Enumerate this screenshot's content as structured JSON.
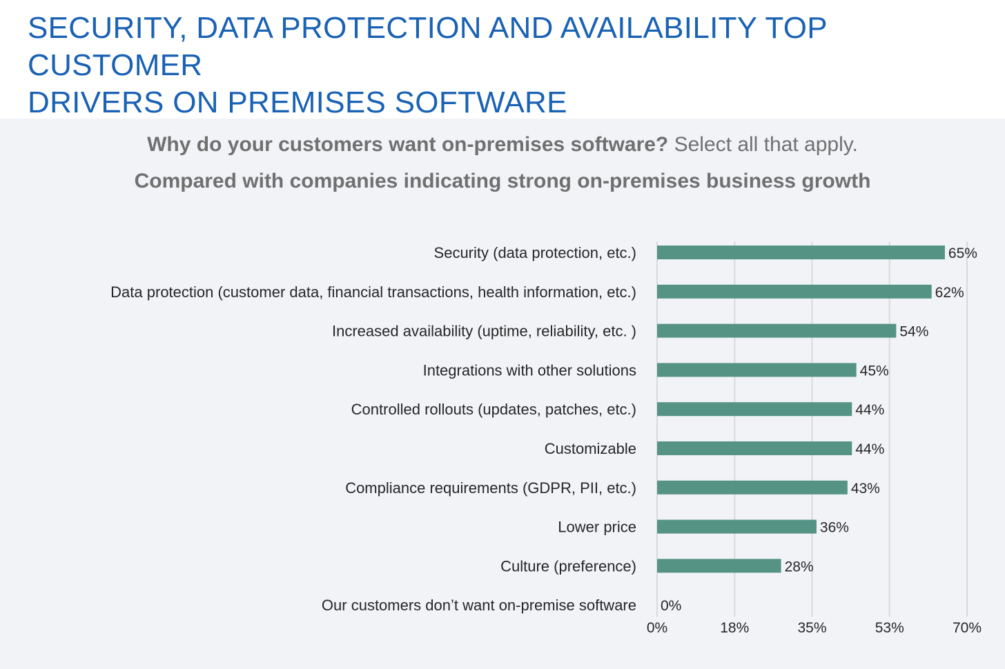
{
  "header": {
    "title_line1": "SECURITY, DATA PROTECTION AND AVAILABILITY TOP CUSTOMER",
    "title_line2": "DRIVERS ON PREMISES SOFTWARE"
  },
  "question": {
    "bold": "Why do your customers want on-premises software?",
    "normal": "Select all that apply.",
    "subtitle": "Compared with companies indicating strong on-premises business growth"
  },
  "colors": {
    "title": "#1a62b4",
    "bar": "#559385",
    "panel_bg": "#f1f3f7",
    "grid": "#d9d9d9",
    "label_text": "#262626"
  },
  "chart_data": {
    "type": "bar",
    "orientation": "horizontal",
    "categories": [
      "Security (data protection, etc.)",
      "Data protection (customer data, financial transactions, health information, etc.)",
      "Increased availability (uptime, reliability, etc. )",
      "Integrations with other solutions",
      "Controlled rollouts (updates, patches, etc.)",
      "Customizable",
      "Compliance requirements (GDPR, PII, etc.)",
      "Lower price",
      "Culture (preference)",
      "Our customers don’t want on-premise software"
    ],
    "values": [
      65,
      62,
      54,
      45,
      44,
      44,
      43,
      36,
      28,
      0
    ],
    "value_labels": [
      "65%",
      "62%",
      "54%",
      "45%",
      "44%",
      "44%",
      "43%",
      "36%",
      "28%",
      "0%"
    ],
    "xlim": [
      0,
      70
    ],
    "x_ticks": [
      0,
      17.5,
      35,
      52.5,
      70
    ],
    "x_tick_labels": [
      "0%",
      "18%",
      "35%",
      "53%",
      "70%"
    ],
    "grid": true,
    "legend": "none"
  }
}
